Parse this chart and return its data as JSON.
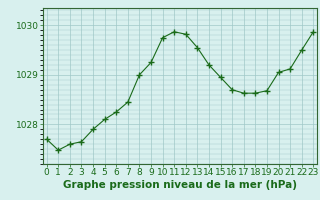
{
  "hours": [
    0,
    1,
    2,
    3,
    4,
    5,
    6,
    7,
    8,
    9,
    10,
    11,
    12,
    13,
    14,
    15,
    16,
    17,
    18,
    19,
    20,
    21,
    22,
    23
  ],
  "pressure": [
    1027.7,
    1027.48,
    1027.6,
    1027.65,
    1027.9,
    1028.1,
    1028.25,
    1028.45,
    1029.0,
    1029.25,
    1029.75,
    1029.87,
    1029.82,
    1029.55,
    1029.2,
    1028.95,
    1028.7,
    1028.63,
    1028.63,
    1028.68,
    1029.05,
    1029.12,
    1029.5,
    1029.87
  ],
  "line_color": "#1a6b1a",
  "marker_color": "#1a6b1a",
  "bg_color": "#d8f0ee",
  "grid_color": "#a0c8c8",
  "xlabel": "Graphe pression niveau de la mer (hPa)",
  "yticks": [
    1028,
    1029,
    1030
  ],
  "ylim": [
    1027.2,
    1030.35
  ],
  "xlim": [
    -0.3,
    23.3
  ],
  "xlabel_color": "#1a6b1a",
  "tick_color": "#1a6b1a",
  "spine_color": "#336633",
  "tick_fontsize": 6.5,
  "xlabel_fontsize": 7.5
}
